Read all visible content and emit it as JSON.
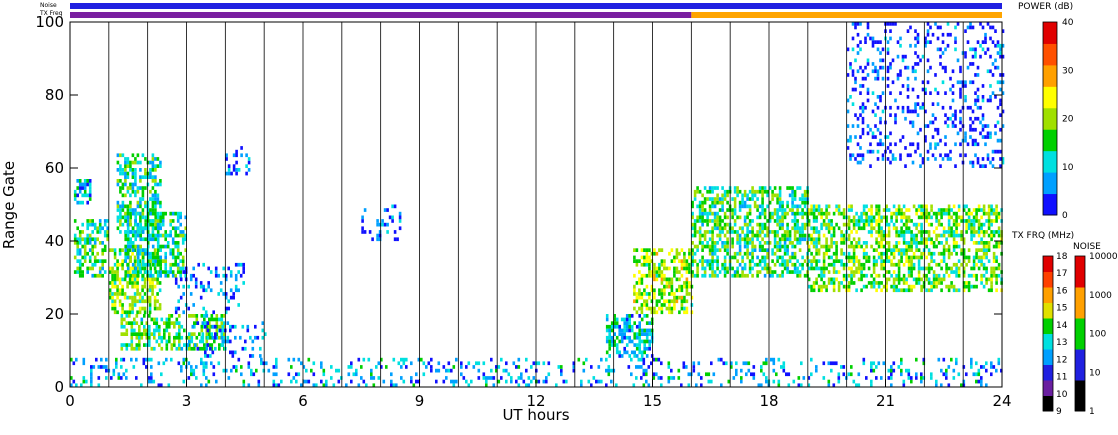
{
  "chart_data": {
    "type": "heatmap",
    "title": "",
    "xlabel": "UT hours",
    "ylabel": "Range Gate",
    "xlim": [
      0,
      24
    ],
    "ylim": [
      0,
      100
    ],
    "x_ticks": [
      "0",
      "3",
      "6",
      "9",
      "12",
      "15",
      "18",
      "21",
      "24"
    ],
    "y_ticks": [
      "0",
      "20",
      "40",
      "60",
      "80",
      "100"
    ],
    "hour_dividers": [
      1,
      2,
      3,
      4,
      5,
      6,
      7,
      8,
      9,
      10,
      11,
      12,
      13,
      14,
      15,
      16,
      17,
      18,
      19,
      20,
      21,
      22,
      23
    ],
    "top_strips": {
      "noise_label": "Noise",
      "freq_label": "TX Freq",
      "noise_color": "#2020e0",
      "freq_color_before": "#7a1fa0",
      "freq_color_after": "#ffa500",
      "freq_change_hour": 16
    },
    "power_colorbar": {
      "label": "POWER (dB)",
      "ticks": [
        "0",
        "10",
        "20",
        "30",
        "40"
      ],
      "colors": [
        "#1010ff",
        "#00a0ff",
        "#00e0e0",
        "#00d000",
        "#a0e000",
        "#ffff00",
        "#ffa000",
        "#ff5000",
        "#e00000"
      ]
    },
    "txfreq_colorbar": {
      "label": "TX FRQ (MHz)",
      "ticks": [
        "9",
        "10",
        "11",
        "12",
        "13",
        "14",
        "15",
        "16",
        "17",
        "18"
      ],
      "colors": [
        "#000000",
        "#6a1fa0",
        "#2020e0",
        "#00a0ff",
        "#00e0e0",
        "#00d000",
        "#e0e000",
        "#ffa000",
        "#ff4000",
        "#e00000"
      ]
    },
    "noise_colorbar": {
      "label": "NOISE",
      "ticks": [
        "1",
        "10",
        "100",
        "1000",
        "10000"
      ],
      "colors": [
        "#000000",
        "#2020e0",
        "#00d000",
        "#ffa000",
        "#e00000"
      ]
    },
    "echo_regions": [
      {
        "t0": 0.1,
        "t1": 1.0,
        "g0": 30,
        "g1": 46,
        "mean_db": 14
      },
      {
        "t0": 0.1,
        "t1": 0.5,
        "g0": 50,
        "g1": 57,
        "mean_db": 10
      },
      {
        "t0": 1.0,
        "t1": 2.3,
        "g0": 20,
        "g1": 38,
        "mean_db": 18
      },
      {
        "t0": 1.2,
        "t1": 2.3,
        "g0": 42,
        "g1": 64,
        "mean_db": 13
      },
      {
        "t0": 1.4,
        "t1": 3.0,
        "g0": 30,
        "g1": 48,
        "mean_db": 12
      },
      {
        "t0": 1.3,
        "t1": 4.0,
        "g0": 10,
        "g1": 20,
        "mean_db": 15
      },
      {
        "t0": 3.0,
        "t1": 5.0,
        "g0": 8,
        "g1": 18,
        "mean_db": 6
      },
      {
        "t0": 2.7,
        "t1": 4.5,
        "g0": 20,
        "g1": 34,
        "mean_db": 5
      },
      {
        "t0": 4.0,
        "t1": 4.7,
        "g0": 58,
        "g1": 66,
        "mean_db": 5
      },
      {
        "t0": 7.5,
        "t1": 8.5,
        "g0": 40,
        "g1": 50,
        "mean_db": 4
      },
      {
        "t0": 13.8,
        "t1": 15.0,
        "g0": 8,
        "g1": 20,
        "mean_db": 10
      },
      {
        "t0": 14.5,
        "t1": 16.0,
        "g0": 20,
        "g1": 38,
        "mean_db": 20
      },
      {
        "t0": 16.0,
        "t1": 19.0,
        "g0": 30,
        "g1": 55,
        "mean_db": 15
      },
      {
        "t0": 19.0,
        "t1": 24.0,
        "g0": 26,
        "g1": 50,
        "mean_db": 17
      },
      {
        "t0": 0.0,
        "t1": 24.0,
        "g0": 0,
        "g1": 8,
        "mean_db": 8
      },
      {
        "t0": 20.0,
        "t1": 24.0,
        "g0": 60,
        "g1": 100,
        "mean_db": 3
      }
    ]
  }
}
